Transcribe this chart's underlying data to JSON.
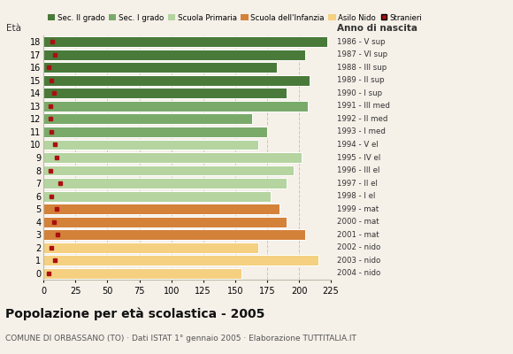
{
  "ages": [
    18,
    17,
    16,
    15,
    14,
    13,
    12,
    11,
    10,
    9,
    8,
    7,
    6,
    5,
    4,
    3,
    2,
    1,
    0
  ],
  "years": [
    "1986 - V sup",
    "1987 - VI sup",
    "1988 - III sup",
    "1989 - II sup",
    "1990 - I sup",
    "1991 - III med",
    "1992 - II med",
    "1993 - I med",
    "1994 - V el",
    "1995 - IV el",
    "1996 - III el",
    "1997 - II el",
    "1998 - I el",
    "1999 - mat",
    "2000 - mat",
    "2001 - mat",
    "2002 - nido",
    "2003 - nido",
    "2004 - nido"
  ],
  "values": [
    222,
    205,
    183,
    208,
    190,
    207,
    163,
    175,
    168,
    202,
    196,
    190,
    178,
    185,
    190,
    205,
    168,
    215,
    155
  ],
  "foreigners": [
    7,
    9,
    4,
    6,
    8,
    5,
    5,
    6,
    9,
    10,
    5,
    13,
    6,
    10,
    8,
    11,
    6,
    9,
    4
  ],
  "categories": [
    "Sec. II grado",
    "Sec. I grado",
    "Scuola Primaria",
    "Scuola dell'Infanzia",
    "Asilo Nido",
    "Stranieri"
  ],
  "colors": {
    "Sec. II grado": "#4a7a3a",
    "Sec. I grado": "#7aaa6a",
    "Scuola Primaria": "#b5d4a0",
    "Scuola dell'Infanzia": "#d4813a",
    "Asilo Nido": "#f5d080",
    "Stranieri": "#aa1010"
  },
  "bar_colors": [
    "#4a7a3a",
    "#4a7a3a",
    "#4a7a3a",
    "#4a7a3a",
    "#4a7a3a",
    "#7aaa6a",
    "#7aaa6a",
    "#7aaa6a",
    "#b5d4a0",
    "#b5d4a0",
    "#b5d4a0",
    "#b5d4a0",
    "#b5d4a0",
    "#d4813a",
    "#d4813a",
    "#d4813a",
    "#f5d080",
    "#f5d080",
    "#f5d080"
  ],
  "title": "Popolazione per età scolastica - 2005",
  "subtitle": "COMUNE DI ORBASSANO (TO) · Dati ISTAT 1° gennaio 2005 · Elaborazione TUTTITALIA.IT",
  "ylabel_left": "Età",
  "ylabel_right": "Anno di nascita",
  "xlim": [
    0,
    225
  ],
  "xticks": [
    0,
    25,
    50,
    75,
    100,
    125,
    150,
    175,
    200,
    225
  ],
  "background_color": "#f5f0e8",
  "grid_color": "#c8c8b8"
}
